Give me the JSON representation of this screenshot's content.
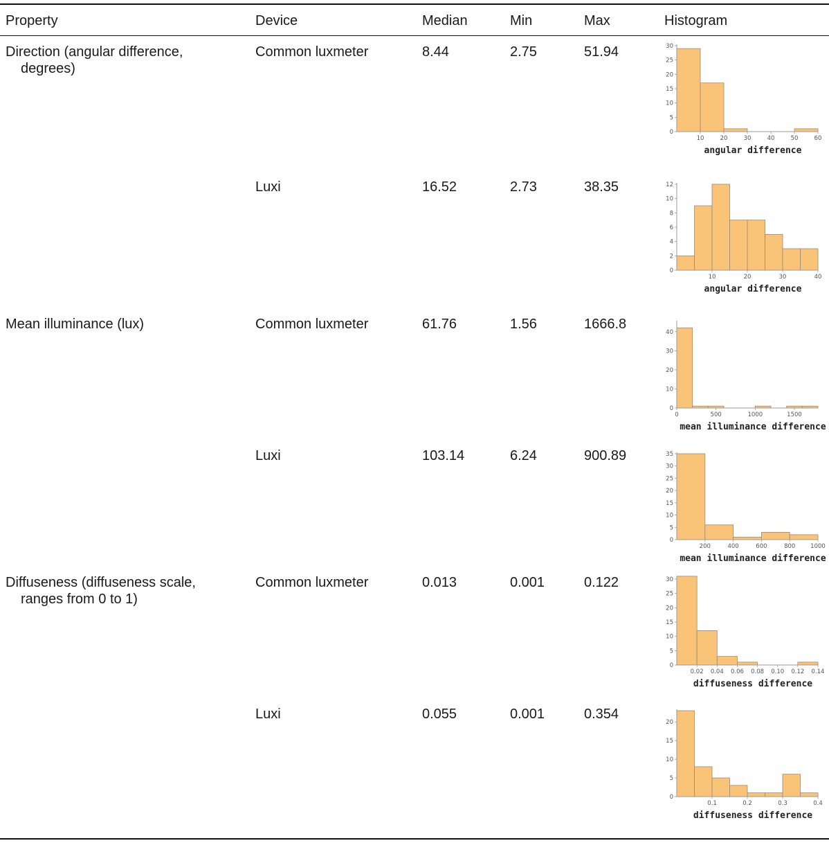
{
  "table": {
    "headers": {
      "property": "Property",
      "device": "Device",
      "median": "Median",
      "min": "Min",
      "max": "Max",
      "histogram": "Histogram"
    },
    "rows": [
      {
        "property_lines": [
          "Direction (angular difference,",
          "degrees)"
        ],
        "device": "Common luxmeter",
        "median": "8.44",
        "min": "2.75",
        "max": "51.94",
        "histogram": {
          "xlabel": "angular difference",
          "xlim": [
            0,
            60
          ],
          "ylim": [
            0,
            30
          ],
          "xticks": [
            10,
            20,
            30,
            40,
            50,
            60
          ],
          "yticks": [
            0,
            5,
            10,
            15,
            20,
            25,
            30
          ],
          "bins": [
            [
              0,
              10,
              29
            ],
            [
              10,
              20,
              17
            ],
            [
              20,
              30,
              1
            ],
            [
              50,
              60,
              1
            ]
          ]
        }
      },
      {
        "property_lines": [],
        "device": "Luxi",
        "median": "16.52",
        "min": "2.73",
        "max": "38.35",
        "histogram": {
          "xlabel": "angular difference",
          "xlim": [
            0,
            40
          ],
          "ylim": [
            0,
            12
          ],
          "xticks": [
            10,
            20,
            30,
            40
          ],
          "yticks": [
            0,
            2,
            4,
            6,
            8,
            10,
            12
          ],
          "bins": [
            [
              0,
              5,
              2
            ],
            [
              5,
              10,
              9
            ],
            [
              10,
              15,
              12
            ],
            [
              15,
              20,
              7
            ],
            [
              20,
              25,
              7
            ],
            [
              25,
              30,
              5
            ],
            [
              30,
              35,
              3
            ],
            [
              35,
              40,
              3
            ]
          ]
        }
      },
      {
        "property_lines": [
          "Mean illuminance (lux)"
        ],
        "device": "Common luxmeter",
        "median": "61.76",
        "min": "1.56",
        "max": "1666.8",
        "histogram": {
          "xlabel": "mean illuminance difference",
          "xlim": [
            0,
            1800
          ],
          "ylim": [
            0,
            45
          ],
          "xticks": [
            0,
            500,
            1000,
            1500
          ],
          "yticks": [
            0,
            10,
            20,
            30,
            40
          ],
          "bins": [
            [
              0,
              200,
              42
            ],
            [
              200,
              400,
              1
            ],
            [
              400,
              600,
              1
            ],
            [
              1000,
              1200,
              1
            ],
            [
              1400,
              1600,
              1
            ],
            [
              1600,
              1800,
              1
            ]
          ]
        }
      },
      {
        "property_lines": [],
        "device": "Luxi",
        "median": "103.14",
        "min": "6.24",
        "max": "900.89",
        "histogram": {
          "xlabel": "mean illuminance difference",
          "xlim": [
            0,
            1000
          ],
          "ylim": [
            0,
            35
          ],
          "xticks": [
            200,
            400,
            600,
            800,
            1000
          ],
          "yticks": [
            0,
            5,
            10,
            15,
            20,
            25,
            30,
            35
          ],
          "bins": [
            [
              0,
              200,
              35
            ],
            [
              200,
              400,
              6
            ],
            [
              400,
              600,
              1
            ],
            [
              600,
              800,
              3
            ],
            [
              800,
              1000,
              2
            ]
          ]
        }
      },
      {
        "property_lines": [
          "Diffuseness (diffuseness scale,",
          "ranges from 0 to 1)"
        ],
        "device": "Common luxmeter",
        "median": "0.013",
        "min": "0.001",
        "max": "0.122",
        "histogram": {
          "xlabel": "diffuseness difference",
          "xlim": [
            0,
            0.14
          ],
          "ylim": [
            0,
            30
          ],
          "xticks": [
            "0.02",
            "0.04",
            "0.06",
            "0.08",
            "0.10",
            "0.12",
            "0.14"
          ],
          "yticks": [
            0,
            5,
            10,
            15,
            20,
            25,
            30
          ],
          "bins": [
            [
              0,
              0.02,
              31
            ],
            [
              0.02,
              0.04,
              12
            ],
            [
              0.04,
              0.06,
              3
            ],
            [
              0.06,
              0.08,
              1
            ],
            [
              0.12,
              0.14,
              1
            ]
          ]
        }
      },
      {
        "property_lines": [],
        "device": "Luxi",
        "median": "0.055",
        "min": "0.001",
        "max": "0.354",
        "histogram": {
          "xlabel": "diffuseness difference",
          "xlim": [
            0,
            0.4
          ],
          "ylim": [
            0,
            23
          ],
          "xticks": [
            "0.1",
            "0.2",
            "0.3",
            "0.4"
          ],
          "yticks": [
            0,
            5,
            10,
            15,
            20
          ],
          "bins": [
            [
              0,
              0.05,
              23
            ],
            [
              0.05,
              0.1,
              8
            ],
            [
              0.1,
              0.15,
              5
            ],
            [
              0.15,
              0.2,
              3
            ],
            [
              0.2,
              0.25,
              1
            ],
            [
              0.25,
              0.3,
              1
            ],
            [
              0.3,
              0.35,
              6
            ],
            [
              0.35,
              0.4,
              1
            ]
          ]
        }
      }
    ]
  },
  "colors": {
    "bar_fill": "#f9c477",
    "bar_stroke": "#9a8a78",
    "axis": "#9a9a9a"
  }
}
